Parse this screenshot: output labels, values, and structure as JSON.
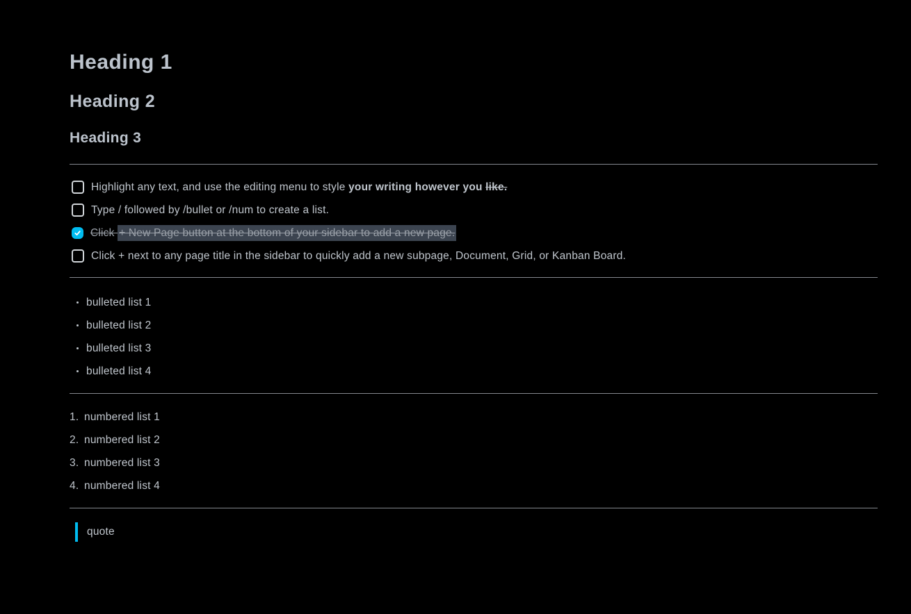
{
  "page": {
    "background_color": "#000000",
    "accent_color": "#00bcf0",
    "text_color": "#c0c6cd",
    "heading_color": "#bcc3cc",
    "divider_color": "#85898f",
    "highlight_color": "#3c4450",
    "done_text_color": "#9ba1a9"
  },
  "headings": {
    "h1": "Heading 1",
    "h2": "Heading 2",
    "h3": "Heading 3"
  },
  "todo_list": {
    "items": [
      {
        "checked": false,
        "segments": [
          {
            "text": "Highlight any text, and use the editing menu to style "
          },
          {
            "text": "your writing however you ",
            "bold": true
          },
          {
            "text": "like.",
            "bold": true,
            "strikethrough": true
          }
        ]
      },
      {
        "checked": false,
        "segments": [
          {
            "text": "Type / followed by /bullet or /num to create a list."
          }
        ]
      },
      {
        "checked": true,
        "segments": [
          {
            "text": "Click ",
            "strikethrough": true
          },
          {
            "text": "+ New Page button at the bottom of your sidebar to add a new page.",
            "strikethrough": true,
            "highlight": true
          }
        ]
      },
      {
        "checked": false,
        "segments": [
          {
            "text": "Click + next to any page title in the sidebar to quickly add a new subpage, Document, Grid, or Kanban Board."
          }
        ]
      }
    ]
  },
  "bulleted_list": {
    "items": [
      "bulleted list 1",
      "bulleted list 2",
      "bulleted list 3",
      "bulleted list 4"
    ]
  },
  "numbered_list": {
    "items": [
      {
        "number": "1.",
        "text": "numbered list 1"
      },
      {
        "number": "2.",
        "text": "numbered list 2"
      },
      {
        "number": "3.",
        "text": "numbered list 3"
      },
      {
        "number": "4.",
        "text": "numbered list 4"
      }
    ]
  },
  "quote": {
    "text": "quote"
  }
}
